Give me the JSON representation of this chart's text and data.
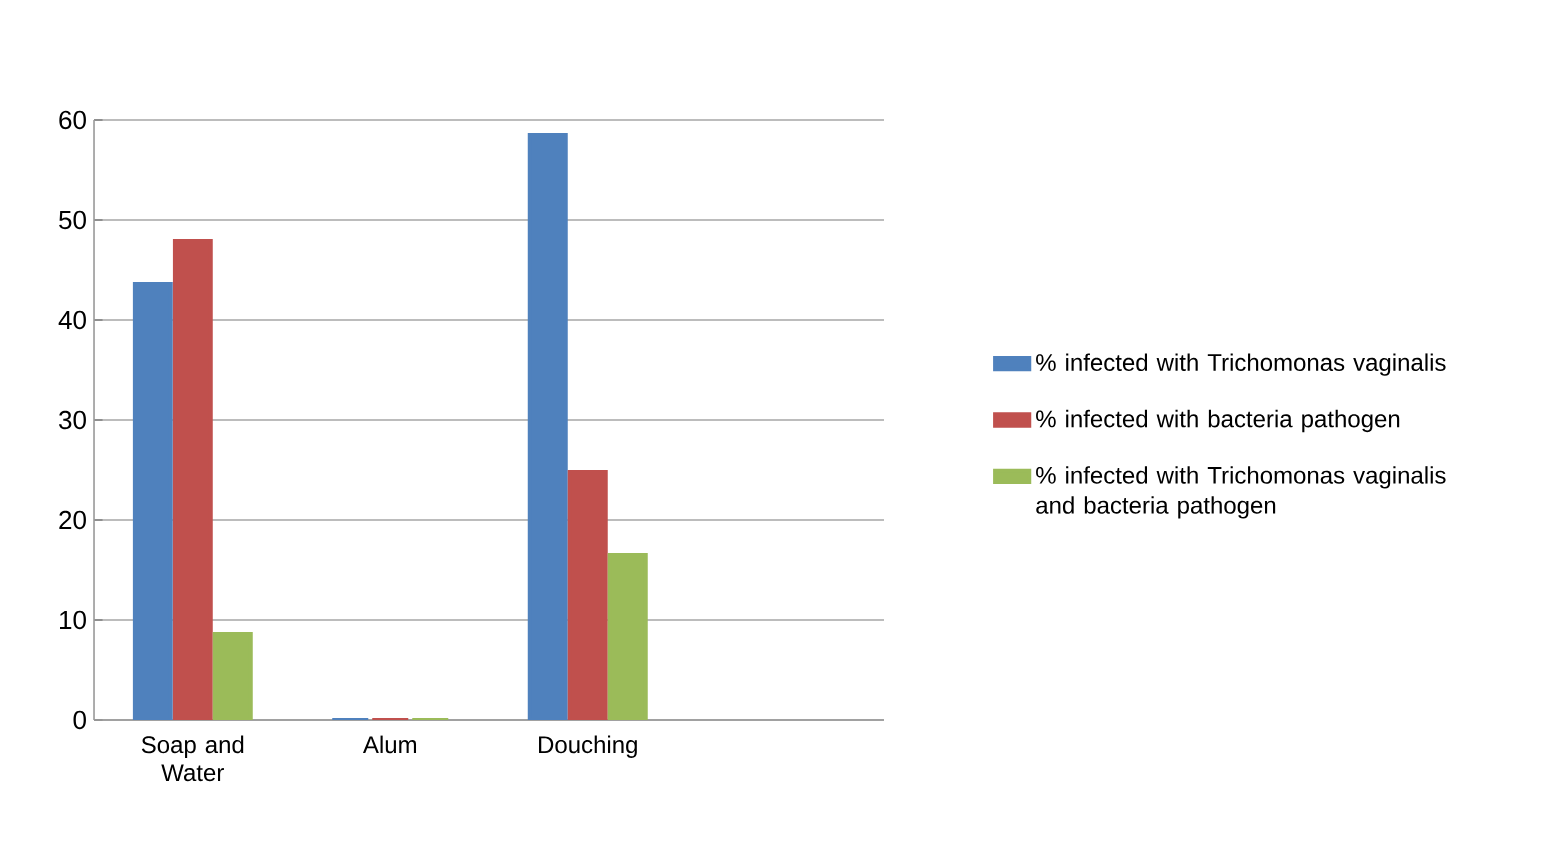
{
  "chart_data": {
    "type": "bar",
    "categories": [
      "Soap and Water",
      "Alum",
      "Douching",
      null
    ],
    "series": [
      {
        "name": "% infected with Trichomonas vaginalis",
        "color": "#4f81bd",
        "values": [
          43.6,
          0,
          58.5,
          null
        ]
      },
      {
        "name": "% infected with bacteria pathogen",
        "color": "#c0504d",
        "values": [
          47.9,
          0,
          24.8,
          null
        ]
      },
      {
        "name": "% infected with Trichomonas vaginalis and bacteria pathogen",
        "color": "#9bbb59",
        "values": [
          8.6,
          0,
          16.5,
          null
        ]
      }
    ],
    "ylim": [
      0,
      60
    ],
    "yticks": [
      0,
      10,
      20,
      30,
      40,
      50,
      60
    ],
    "grid": "y",
    "legend": "right"
  }
}
